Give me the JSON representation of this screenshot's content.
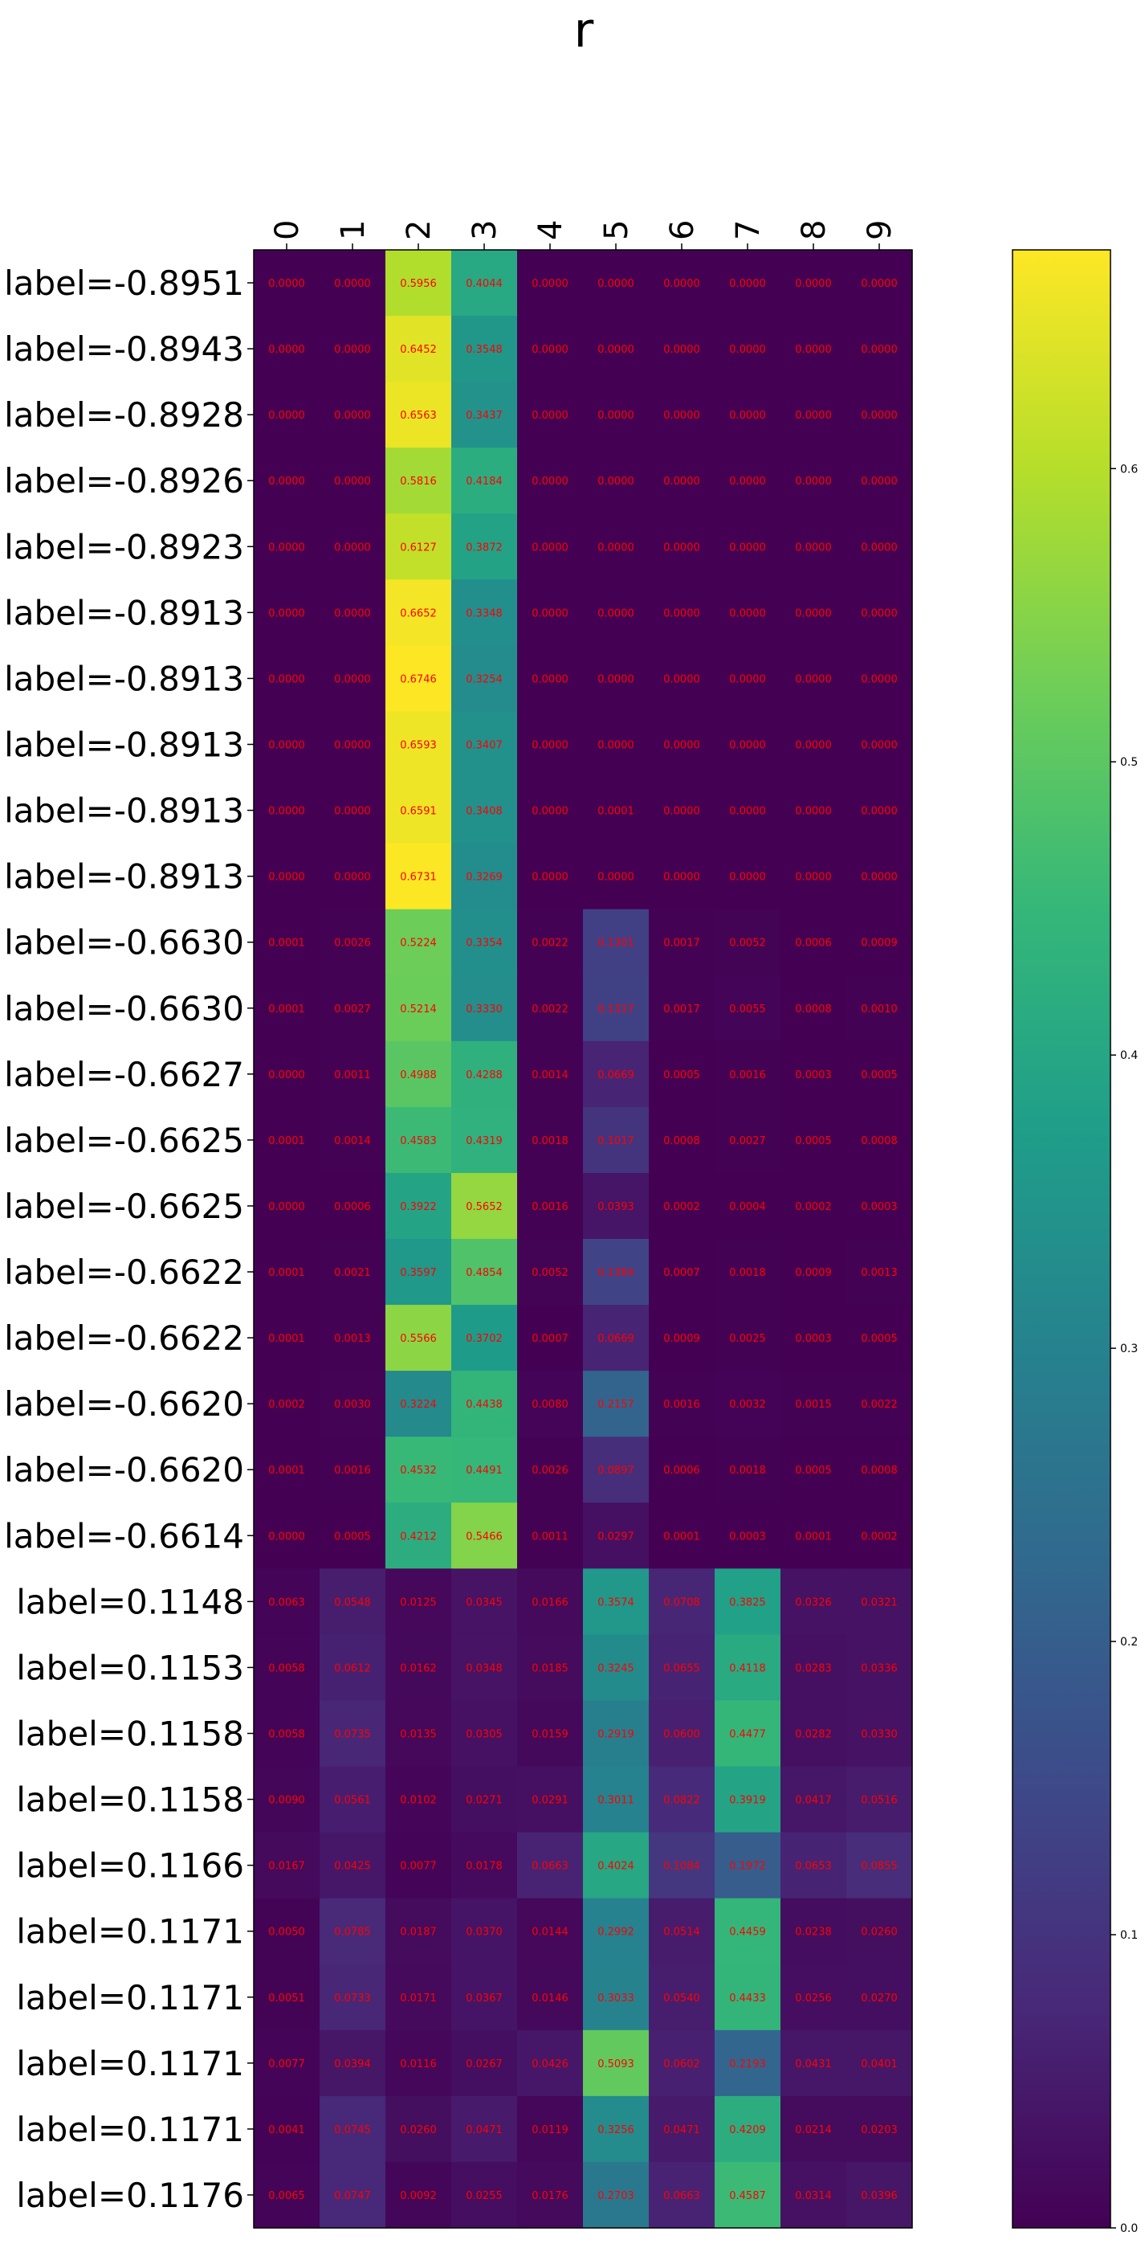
{
  "chart_data": {
    "type": "heatmap",
    "title": "r",
    "columns": [
      "0",
      "1",
      "2",
      "3",
      "4",
      "5",
      "6",
      "7",
      "8",
      "9"
    ],
    "rows": [
      "label=-0.8951",
      "label=-0.8943",
      "label=-0.8928",
      "label=-0.8926",
      "label=-0.8923",
      "label=-0.8913",
      "label=-0.8913",
      "label=-0.8913",
      "label=-0.8913",
      "label=-0.8913",
      "label=-0.6630",
      "label=-0.6630",
      "label=-0.6627",
      "label=-0.6625",
      "label=-0.6625",
      "label=-0.6622",
      "label=-0.6622",
      "label=-0.6620",
      "label=-0.6620",
      "label=-0.6614",
      "label=0.1148",
      "label=0.1153",
      "label=0.1158",
      "label=0.1158",
      "label=0.1166",
      "label=0.1171",
      "label=0.1171",
      "label=0.1171",
      "label=0.1171",
      "label=0.1176"
    ],
    "values": [
      [
        0.0,
        0.0,
        0.5956,
        0.4044,
        0.0,
        0.0,
        0.0,
        0.0,
        0.0,
        0.0
      ],
      [
        0.0,
        0.0,
        0.6452,
        0.3548,
        0.0,
        0.0,
        0.0,
        0.0,
        0.0,
        0.0
      ],
      [
        0.0,
        0.0,
        0.6563,
        0.3437,
        0.0,
        0.0,
        0.0,
        0.0,
        0.0,
        0.0
      ],
      [
        0.0,
        0.0,
        0.5816,
        0.4184,
        0.0,
        0.0,
        0.0,
        0.0,
        0.0,
        0.0
      ],
      [
        0.0,
        0.0,
        0.6127,
        0.3872,
        0.0,
        0.0,
        0.0,
        0.0,
        0.0,
        0.0
      ],
      [
        0.0,
        0.0,
        0.6652,
        0.3348,
        0.0,
        0.0,
        0.0,
        0.0,
        0.0,
        0.0
      ],
      [
        0.0,
        0.0,
        0.6746,
        0.3254,
        0.0,
        0.0,
        0.0,
        0.0,
        0.0,
        0.0
      ],
      [
        0.0,
        0.0,
        0.6593,
        0.3407,
        0.0,
        0.0,
        0.0,
        0.0,
        0.0,
        0.0
      ],
      [
        0.0,
        0.0,
        0.6591,
        0.3408,
        0.0,
        0.0001,
        0.0,
        0.0,
        0.0,
        0.0
      ],
      [
        0.0,
        0.0,
        0.6731,
        0.3269,
        0.0,
        0.0,
        0.0,
        0.0,
        0.0,
        0.0
      ],
      [
        0.0001,
        0.0026,
        0.5224,
        0.3354,
        0.0022,
        0.1301,
        0.0017,
        0.0052,
        0.0006,
        0.0009
      ],
      [
        0.0001,
        0.0027,
        0.5214,
        0.333,
        0.0022,
        0.1317,
        0.0017,
        0.0055,
        0.0008,
        0.001
      ],
      [
        0.0,
        0.0011,
        0.4988,
        0.4288,
        0.0014,
        0.0669,
        0.0005,
        0.0016,
        0.0003,
        0.0005
      ],
      [
        0.0001,
        0.0014,
        0.4583,
        0.4319,
        0.0018,
        0.1017,
        0.0008,
        0.0027,
        0.0005,
        0.0008
      ],
      [
        0.0,
        0.0006,
        0.3922,
        0.5652,
        0.0016,
        0.0393,
        0.0002,
        0.0004,
        0.0002,
        0.0003
      ],
      [
        0.0001,
        0.0021,
        0.3597,
        0.4854,
        0.0052,
        0.1384,
        0.0007,
        0.0018,
        0.0009,
        0.0013
      ],
      [
        0.0001,
        0.0013,
        0.5566,
        0.3702,
        0.0007,
        0.0669,
        0.0009,
        0.0025,
        0.0003,
        0.0005
      ],
      [
        0.0002,
        0.003,
        0.3224,
        0.4438,
        0.008,
        0.2157,
        0.0016,
        0.0032,
        0.0015,
        0.0022
      ],
      [
        0.0001,
        0.0016,
        0.4532,
        0.4491,
        0.0026,
        0.0897,
        0.0006,
        0.0018,
        0.0005,
        0.0008
      ],
      [
        0.0,
        0.0005,
        0.4212,
        0.5466,
        0.0011,
        0.0297,
        0.0001,
        0.0003,
        0.0001,
        0.0002
      ],
      [
        0.0063,
        0.0548,
        0.0125,
        0.0345,
        0.0166,
        0.3574,
        0.0708,
        0.3825,
        0.0326,
        0.0321
      ],
      [
        0.0058,
        0.0612,
        0.0162,
        0.0348,
        0.0185,
        0.3245,
        0.0655,
        0.4118,
        0.0283,
        0.0336
      ],
      [
        0.0058,
        0.0735,
        0.0135,
        0.0305,
        0.0159,
        0.2919,
        0.06,
        0.4477,
        0.0282,
        0.033
      ],
      [
        0.009,
        0.0561,
        0.0102,
        0.0271,
        0.0291,
        0.3011,
        0.0822,
        0.3919,
        0.0417,
        0.0516
      ],
      [
        0.0167,
        0.0425,
        0.0077,
        0.0178,
        0.0663,
        0.4024,
        0.1084,
        0.1972,
        0.0653,
        0.0855
      ],
      [
        0.005,
        0.0785,
        0.0187,
        0.037,
        0.0144,
        0.2992,
        0.0514,
        0.4459,
        0.0238,
        0.026
      ],
      [
        0.0051,
        0.0733,
        0.0171,
        0.0367,
        0.0146,
        0.3033,
        0.054,
        0.4433,
        0.0256,
        0.027
      ],
      [
        0.0077,
        0.0394,
        0.0116,
        0.0267,
        0.0426,
        0.5093,
        0.0602,
        0.2193,
        0.0431,
        0.0401
      ],
      [
        0.0041,
        0.0745,
        0.026,
        0.0471,
        0.0119,
        0.3256,
        0.0471,
        0.4209,
        0.0214,
        0.0203
      ],
      [
        0.0065,
        0.0747,
        0.0092,
        0.0255,
        0.0176,
        0.2703,
        0.0663,
        0.4587,
        0.0314,
        0.0396
      ]
    ],
    "colormap": "viridis",
    "value_range": [
      0,
      0.6746
    ],
    "colorbar_ticks": [
      "0.0",
      "0.1",
      "0.2",
      "0.3",
      "0.4",
      "0.5",
      "0.6"
    ],
    "colorbar_tick_values": [
      0.0,
      0.1,
      0.2,
      0.3,
      0.4,
      0.5,
      0.6
    ],
    "cell_text_color": "#ff0000",
    "viridis_stops": [
      "#440154",
      "#482878",
      "#3e4989",
      "#31688e",
      "#26828e",
      "#1f9e89",
      "#35b779",
      "#6ece58",
      "#b5de2b",
      "#fde725"
    ]
  }
}
